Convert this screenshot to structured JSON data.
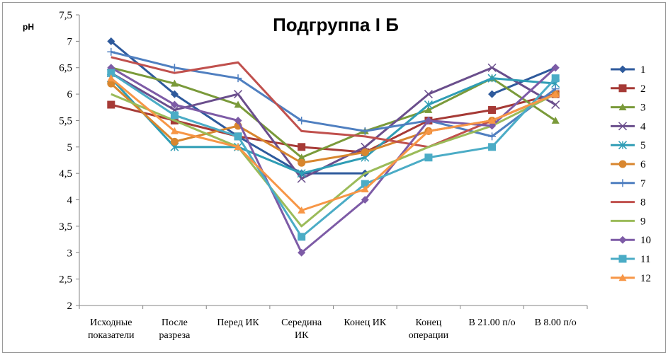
{
  "chart_data": {
    "type": "line",
    "title": "Подгруппа I Б",
    "ylabel": "pH",
    "xlabel": "",
    "ylim": [
      2,
      7.5
    ],
    "ytick_step": 0.5,
    "ytick_labels": [
      "2",
      "2,5",
      "3",
      "3,5",
      "4",
      "4,5",
      "5",
      "5,5",
      "6",
      "6,5",
      "7",
      "7,5"
    ],
    "grid": false,
    "legend_position": "right",
    "categories": [
      [
        "Исходные",
        "показатели"
      ],
      [
        "После",
        "разреза"
      ],
      [
        "Перед ИК"
      ],
      [
        "Середина",
        "ИК"
      ],
      [
        "Конец ИК"
      ],
      [
        "Конец",
        "операции"
      ],
      [
        "В 21.00 п/о"
      ],
      [
        "В 8.00 п/о"
      ]
    ],
    "series": [
      {
        "name": "1",
        "color": "#2E5A9C",
        "marker": "diamond",
        "values": [
          7.0,
          6.0,
          5.2,
          4.5,
          4.5,
          null,
          6.0,
          6.5
        ]
      },
      {
        "name": "2",
        "color": "#A63A36",
        "marker": "square",
        "values": [
          5.8,
          5.5,
          5.2,
          5.0,
          4.9,
          5.5,
          5.7,
          6.0
        ]
      },
      {
        "name": "3",
        "color": "#7A9A3A",
        "marker": "triangle",
        "values": [
          6.5,
          6.2,
          5.8,
          4.8,
          5.3,
          5.7,
          6.3,
          5.5
        ]
      },
      {
        "name": "4",
        "color": "#6A4E8C",
        "marker": "x",
        "values": [
          6.4,
          5.7,
          6.0,
          4.4,
          5.0,
          6.0,
          6.5,
          5.8
        ]
      },
      {
        "name": "5",
        "color": "#2F9DB5",
        "marker": "star",
        "values": [
          6.3,
          5.0,
          5.0,
          4.5,
          4.8,
          5.8,
          6.3,
          6.2
        ]
      },
      {
        "name": "6",
        "color": "#D8862E",
        "marker": "circle",
        "values": [
          6.2,
          5.1,
          5.4,
          4.7,
          4.9,
          5.3,
          5.5,
          6.0
        ]
      },
      {
        "name": "7",
        "color": "#4F7FC0",
        "marker": "plus",
        "values": [
          6.8,
          6.5,
          6.3,
          5.5,
          5.3,
          5.5,
          5.2,
          6.1
        ]
      },
      {
        "name": "8",
        "color": "#C0504D",
        "marker": "none",
        "values": [
          6.7,
          6.4,
          6.6,
          5.3,
          5.2,
          5.0,
          5.5,
          6.0
        ]
      },
      {
        "name": "9",
        "color": "#9BBB59",
        "marker": "none",
        "values": [
          6.0,
          5.5,
          5.0,
          3.5,
          4.5,
          5.0,
          5.4,
          6.0
        ]
      },
      {
        "name": "10",
        "color": "#7D5BA6",
        "marker": "diamond",
        "values": [
          6.5,
          5.8,
          5.5,
          3.0,
          4.0,
          5.5,
          5.4,
          6.5
        ]
      },
      {
        "name": "11",
        "color": "#4BACC6",
        "marker": "square",
        "values": [
          6.4,
          5.6,
          5.2,
          3.3,
          4.3,
          4.8,
          5.0,
          6.3
        ]
      },
      {
        "name": "12",
        "color": "#F79646",
        "marker": "triangle",
        "values": [
          6.3,
          5.3,
          5.0,
          3.8,
          4.2,
          5.3,
          5.5,
          6.0
        ]
      }
    ]
  }
}
